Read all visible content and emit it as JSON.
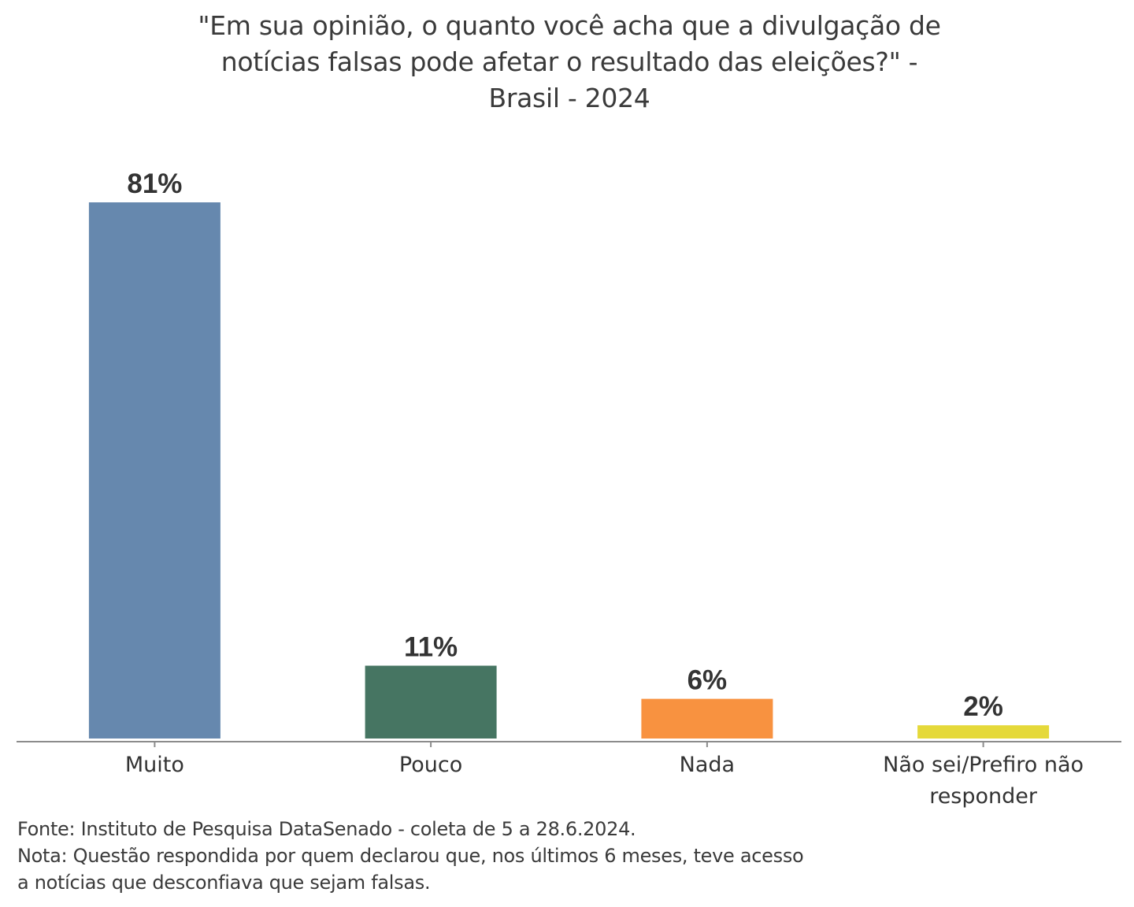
{
  "chart_data": {
    "type": "bar",
    "title_lines": [
      "\"Em sua opinião, o quanto você acha que a divulgação de",
      "notícias falsas pode afetar o resultado das eleições?\" -",
      "Brasil - 2024"
    ],
    "categories": [
      "Muito",
      "Pouco",
      "Nada",
      "Não sei/Prefiro não responder"
    ],
    "category_label_lines": [
      [
        "Muito"
      ],
      [
        "Pouco"
      ],
      [
        "Nada"
      ],
      [
        "Não sei/Prefiro não",
        "responder"
      ]
    ],
    "values": [
      81,
      11,
      6,
      2
    ],
    "data_labels": [
      "81%",
      "11%",
      "6%",
      "2%"
    ],
    "colors": [
      "#6688ae",
      "#467562",
      "#f89240",
      "#e5d93a"
    ],
    "xlabel": "",
    "ylabel": "",
    "ylim": [
      0,
      81
    ],
    "grid": false,
    "legend": "none"
  },
  "footer": {
    "source": "Fonte: Instituto de Pesquisa DataSenado - coleta de 5 a 28.6.2024.",
    "note_line1": "Nota: Questão respondida por quem declarou que, nos últimos 6 meses, teve acesso",
    "note_line2": "a notícias que desconfiava que sejam falsas."
  }
}
